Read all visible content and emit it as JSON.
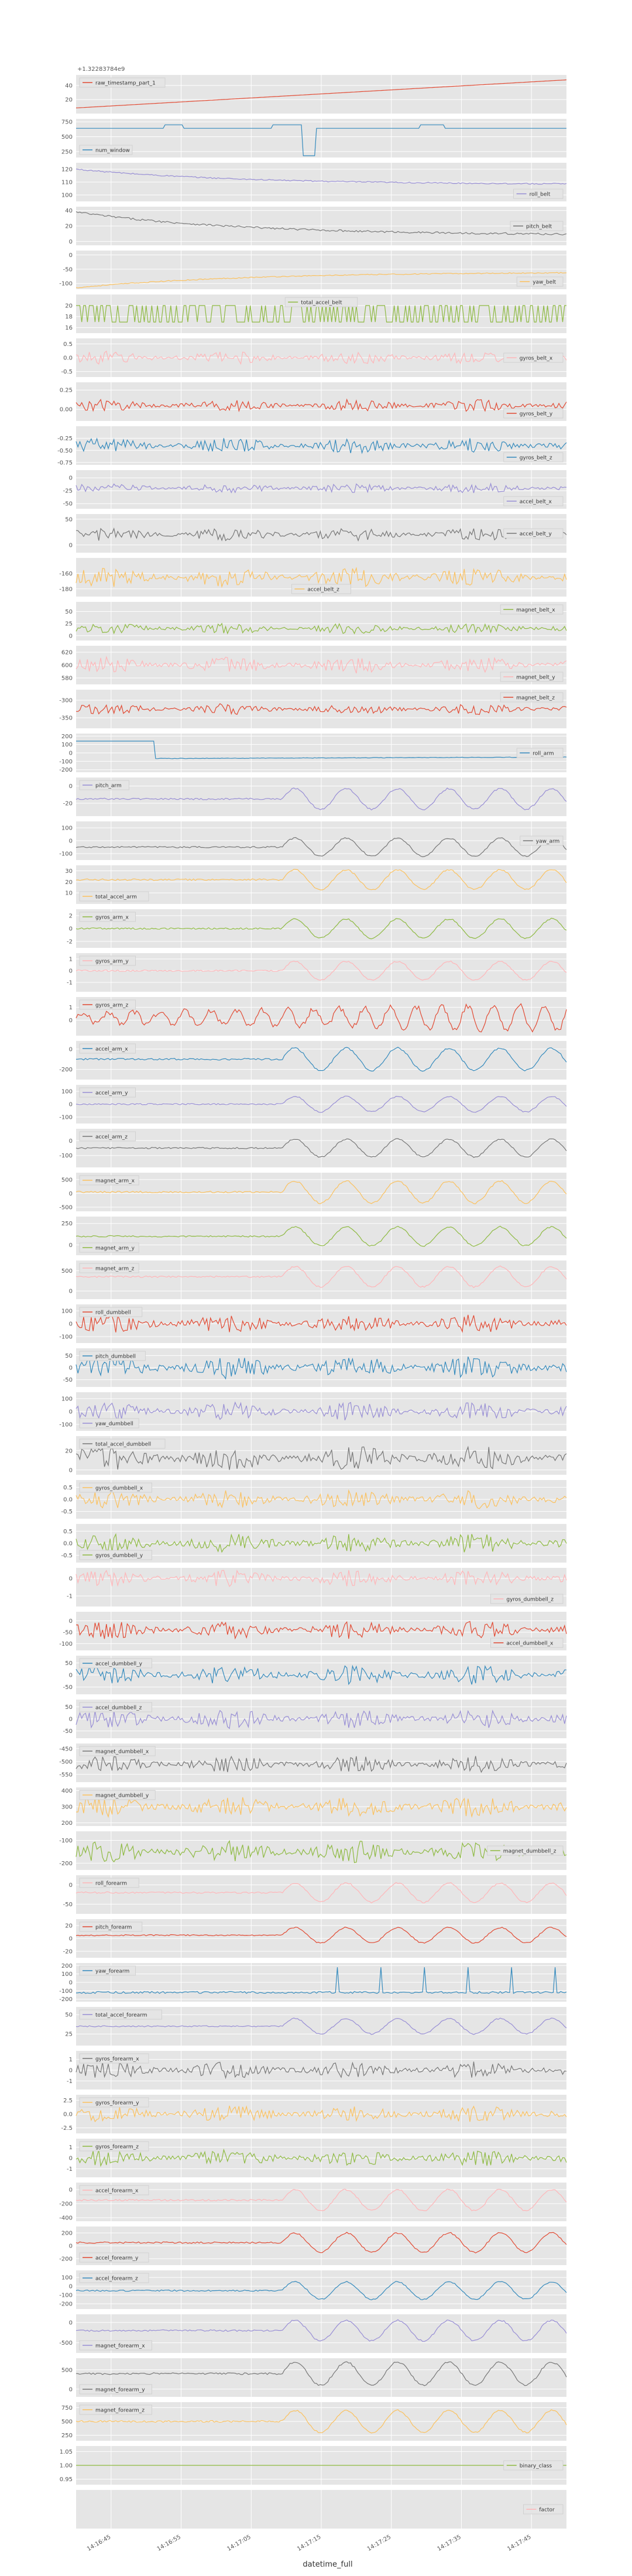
{
  "chart_data": {
    "type": "line",
    "style": "ggplot",
    "xlabel": "datetime_full",
    "x_tick_labels": [
      "14:16:45",
      "14:16:55",
      "14:17:05",
      "14:17:15",
      "14:17:25",
      "14:17:35",
      "14:17:45"
    ],
    "offset_label": "+1.32283784e9",
    "series_order": [
      "raw_timestamp_part_1",
      "num_window",
      "roll_belt",
      "pitch_belt",
      "yaw_belt",
      "total_accel_belt",
      "gyros_belt_x",
      "gyros_belt_y",
      "gyros_belt_z",
      "accel_belt_x",
      "accel_belt_y",
      "accel_belt_z",
      "magnet_belt_x",
      "magnet_belt_y",
      "magnet_belt_z",
      "roll_arm",
      "pitch_arm",
      "yaw_arm",
      "total_accel_arm",
      "gyros_arm_x",
      "gyros_arm_y",
      "gyros_arm_z",
      "accel_arm_x",
      "accel_arm_y",
      "accel_arm_z",
      "magnet_arm_x",
      "magnet_arm_y",
      "magnet_arm_z",
      "roll_dumbbell",
      "pitch_dumbbell",
      "yaw_dumbbell",
      "total_accel_dumbbell",
      "gyros_dumbbell_x",
      "gyros_dumbbell_y",
      "gyros_dumbbell_z",
      "accel_dumbbell_x",
      "accel_dumbbell_y",
      "accel_dumbbell_z",
      "magnet_dumbbell_x",
      "magnet_dumbbell_y",
      "magnet_dumbbell_z",
      "roll_forearm",
      "pitch_forearm",
      "yaw_forearm",
      "total_accel_forearm",
      "gyros_forearm_x",
      "gyros_forearm_y",
      "gyros_forearm_z",
      "accel_forearm_x",
      "accel_forearm_y",
      "accel_forearm_z",
      "magnet_forearm_x",
      "magnet_forearm_y",
      "magnet_forearm_z",
      "binary_class",
      "factor"
    ],
    "panels": {
      "raw_timestamp_part_1": {
        "color": "#E24A33",
        "legend": "upper-left",
        "yticks": [
          "40",
          "20"
        ],
        "ylim": [
          0,
          55
        ],
        "kind": "ramp",
        "base": 8,
        "amp": 40
      },
      "num_window": {
        "color": "#348ABD",
        "legend": "lower-left",
        "yticks": [
          "750",
          "500",
          "250"
        ],
        "ylim": [
          150,
          800
        ],
        "kind": "steps",
        "base": 640,
        "amp": 0
      },
      "roll_belt": {
        "color": "#988ED5",
        "legend": "lower-right",
        "yticks": [
          "120",
          "110",
          "100"
        ],
        "ylim": [
          95,
          125
        ],
        "kind": "decay",
        "base": 108,
        "amp": 12
      },
      "pitch_belt": {
        "color": "#777777",
        "legend": "right",
        "yticks": [
          "40",
          "20",
          "0"
        ],
        "ylim": [
          -5,
          45
        ],
        "kind": "decay",
        "base": 8,
        "amp": 30
      },
      "yaw_belt": {
        "color": "#FBC15E",
        "legend": "lower-right",
        "yticks": [
          "0",
          "-50",
          "-100"
        ],
        "ylim": [
          -120,
          15
        ],
        "kind": "rise",
        "base": -60,
        "amp": 55
      },
      "total_accel_belt": {
        "color": "#8EBA42",
        "legend": "top-center",
        "yticks": [
          "20",
          "18",
          "16"
        ],
        "ylim": [
          15,
          22
        ],
        "kind": "binary",
        "base": 18,
        "amp": 2
      },
      "gyros_belt_x": {
        "color": "#FFB5B8",
        "legend": "right",
        "yticks": [
          "0.5",
          "0.0",
          "-0.5"
        ],
        "ylim": [
          -0.7,
          0.7
        ],
        "kind": "noise",
        "base": 0,
        "amp": 0.15
      },
      "gyros_belt_y": {
        "color": "#E24A33",
        "legend": "lower-right",
        "yticks": [
          "0.25",
          "0.00"
        ],
        "ylim": [
          -0.15,
          0.35
        ],
        "kind": "noise",
        "base": 0.05,
        "amp": 0.05
      },
      "gyros_belt_z": {
        "color": "#348ABD",
        "legend": "lower-right",
        "yticks": [
          "-0.25",
          "-0.50",
          "-0.75"
        ],
        "ylim": [
          -0.8,
          0
        ],
        "kind": "noise",
        "base": -0.4,
        "amp": 0.1
      },
      "accel_belt_x": {
        "color": "#988ED5",
        "legend": "lower-right",
        "yticks": [
          "0",
          "-25",
          "-50"
        ],
        "ylim": [
          -60,
          15
        ],
        "kind": "noise",
        "base": -20,
        "amp": 6
      },
      "accel_belt_y": {
        "color": "#777777",
        "legend": "right",
        "yticks": [
          "50",
          "0"
        ],
        "ylim": [
          -15,
          60
        ],
        "kind": "noise",
        "base": 20,
        "amp": 8
      },
      "accel_belt_z": {
        "color": "#FBC15E",
        "legend": "lower-center",
        "yticks": [
          "-160",
          "-180"
        ],
        "ylim": [
          -190,
          -140
        ],
        "kind": "noise",
        "base": -165,
        "amp": 8
      },
      "magnet_belt_x": {
        "color": "#8EBA42",
        "legend": "upper-right",
        "yticks": [
          "50",
          "25",
          "0"
        ],
        "ylim": [
          -10,
          70
        ],
        "kind": "noise",
        "base": 15,
        "amp": 7
      },
      "magnet_belt_y": {
        "color": "#FFB5B8",
        "legend": "lower-right",
        "yticks": [
          "620",
          "600",
          "580"
        ],
        "ylim": [
          570,
          630
        ],
        "kind": "noise",
        "base": 600,
        "amp": 8
      },
      "magnet_belt_z": {
        "color": "#E24A33",
        "legend": "upper-right",
        "yticks": [
          "-300",
          "-350"
        ],
        "ylim": [
          -380,
          -270
        ],
        "kind": "noise",
        "base": -325,
        "amp": 10
      },
      "roll_arm": {
        "color": "#348ABD",
        "legend": "right",
        "yticks": [
          "200",
          "100",
          "0",
          "-100",
          "-200"
        ],
        "ylim": [
          -230,
          230
        ],
        "kind": "step",
        "base": -10,
        "amp": 100
      },
      "pitch_arm": {
        "color": "#988ED5",
        "legend": "upper-left",
        "yticks": [
          "0",
          "-20"
        ],
        "ylim": [
          -35,
          10
        ],
        "kind": "sine",
        "base": -15,
        "amp": 12
      },
      "yaw_arm": {
        "color": "#777777",
        "legend": "right",
        "yticks": [
          "100",
          "0",
          "-100"
        ],
        "ylim": [
          -150,
          150
        ],
        "kind": "sine",
        "base": -50,
        "amp": 70
      },
      "total_accel_arm": {
        "color": "#FBC15E",
        "legend": "lower-left",
        "yticks": [
          "30",
          "20",
          "10"
        ],
        "ylim": [
          0,
          35
        ],
        "kind": "sine",
        "base": 22,
        "amp": 9
      },
      "gyros_arm_x": {
        "color": "#8EBA42",
        "legend": "upper-left",
        "yticks": [
          "2",
          "0",
          "-2"
        ],
        "ylim": [
          -3,
          3
        ],
        "kind": "sine",
        "base": 0,
        "amp": 1.5
      },
      "gyros_arm_y": {
        "color": "#FFB5B8",
        "legend": "upper-left",
        "yticks": [
          "1",
          "0",
          "-1"
        ],
        "ylim": [
          -1.8,
          1.5
        ],
        "kind": "sine",
        "base": 0,
        "amp": 0.8
      },
      "gyros_arm_z": {
        "color": "#E24A33",
        "legend": "upper-left",
        "yticks": [
          "1",
          "0"
        ],
        "ylim": [
          -1.2,
          1.8
        ],
        "kind": "osc",
        "base": 0.2,
        "amp": 0.7
      },
      "accel_arm_x": {
        "color": "#348ABD",
        "legend": "upper-left",
        "yticks": [
          "0",
          "-200"
        ],
        "ylim": [
          -300,
          80
        ],
        "kind": "sine",
        "base": -100,
        "amp": 110
      },
      "accel_arm_y": {
        "color": "#988ED5",
        "legend": "upper-left",
        "yticks": [
          "100",
          "0",
          "-100"
        ],
        "ylim": [
          -150,
          150
        ],
        "kind": "sine",
        "base": 0,
        "amp": 60
      },
      "accel_arm_z": {
        "color": "#777777",
        "legend": "upper-left",
        "yticks": [
          "0",
          "-100"
        ],
        "ylim": [
          -180,
          80
        ],
        "kind": "sine",
        "base": -50,
        "amp": 60
      },
      "magnet_arm_x": {
        "color": "#FBC15E",
        "legend": "upper-left",
        "yticks": [
          "500",
          "0",
          "-500"
        ],
        "ylim": [
          -650,
          750
        ],
        "kind": "sine",
        "base": 50,
        "amp": 400
      },
      "magnet_arm_y": {
        "color": "#8EBA42",
        "legend": "lower-left",
        "yticks": [
          "250",
          "0"
        ],
        "ylim": [
          -120,
          330
        ],
        "kind": "sine",
        "base": 100,
        "amp": 110
      },
      "magnet_arm_z": {
        "color": "#FFB5B8",
        "legend": "upper-left",
        "yticks": [
          "500",
          "0"
        ],
        "ylim": [
          -200,
          750
        ],
        "kind": "sine",
        "base": 350,
        "amp": 250
      },
      "roll_dumbbell": {
        "color": "#E24A33",
        "legend": "upper-left",
        "yticks": [
          "100",
          "0",
          "-100"
        ],
        "ylim": [
          -150,
          150
        ],
        "kind": "noise",
        "base": 0,
        "amp": 45
      },
      "pitch_dumbbell": {
        "color": "#348ABD",
        "legend": "upper-left",
        "yticks": [
          "50",
          "0",
          "-50"
        ],
        "ylim": [
          -80,
          80
        ],
        "kind": "noise",
        "base": 0,
        "amp": 30
      },
      "yaw_dumbbell": {
        "color": "#988ED5",
        "legend": "lower-left",
        "yticks": [
          "100",
          "0",
          "-100"
        ],
        "ylim": [
          -150,
          150
        ],
        "kind": "noise",
        "base": 0,
        "amp": 45
      },
      "total_accel_dumbbell": {
        "color": "#777777",
        "legend": "upper-left",
        "yticks": [
          "20",
          "0"
        ],
        "ylim": [
          -5,
          35
        ],
        "kind": "noise",
        "base": 12,
        "amp": 8
      },
      "gyros_dumbbell_x": {
        "color": "#FBC15E",
        "legend": "upper-left",
        "yticks": [
          "0.5",
          "0.0",
          "-0.5"
        ],
        "ylim": [
          -0.8,
          0.8
        ],
        "kind": "noise",
        "base": 0,
        "amp": 0.25
      },
      "gyros_dumbbell_y": {
        "color": "#8EBA42",
        "legend": "lower-left",
        "yticks": [
          "0.5",
          "0.0",
          "-0.5"
        ],
        "ylim": [
          -0.8,
          0.8
        ],
        "kind": "noise",
        "base": 0,
        "amp": 0.25
      },
      "gyros_dumbbell_z": {
        "color": "#FFB5B8",
        "legend": "lower-right",
        "yticks": [
          "0",
          "-1"
        ],
        "ylim": [
          -1.6,
          0.6
        ],
        "kind": "noise",
        "base": 0,
        "amp": 0.3
      },
      "accel_dumbbell_x": {
        "color": "#E24A33",
        "legend": "lower-right",
        "yticks": [
          "0",
          "-50",
          "-100"
        ],
        "ylim": [
          -130,
          40
        ],
        "kind": "noise",
        "base": -40,
        "amp": 25
      },
      "accel_dumbbell_y": {
        "color": "#348ABD",
        "legend": "upper-left",
        "yticks": [
          "50",
          "0",
          "-50"
        ],
        "ylim": [
          -80,
          80
        ],
        "kind": "noise",
        "base": 0,
        "amp": 25
      },
      "accel_dumbbell_z": {
        "color": "#988ED5",
        "legend": "upper-left",
        "yticks": [
          "50",
          "0",
          "-50"
        ],
        "ylim": [
          -80,
          80
        ],
        "kind": "noise",
        "base": 0,
        "amp": 25
      },
      "magnet_dumbbell_x": {
        "color": "#777777",
        "legend": "upper-left",
        "yticks": [
          "-450",
          "-500",
          "-550"
        ],
        "ylim": [
          -580,
          -430
        ],
        "kind": "noise",
        "base": -510,
        "amp": 20
      },
      "magnet_dumbbell_y": {
        "color": "#FBC15E",
        "legend": "upper-left",
        "yticks": [
          "400",
          "300",
          "200"
        ],
        "ylim": [
          180,
          420
        ],
        "kind": "noise",
        "base": 300,
        "amp": 40
      },
      "magnet_dumbbell_z": {
        "color": "#8EBA42",
        "legend": "right",
        "yticks": [
          "-100",
          "-200"
        ],
        "ylim": [
          -230,
          -60
        ],
        "kind": "noise",
        "base": -150,
        "amp": 30
      },
      "roll_forearm": {
        "color": "#FFB5B8",
        "legend": "upper-left",
        "yticks": [
          "0",
          "-50"
        ],
        "ylim": [
          -75,
          25
        ],
        "kind": "sine",
        "base": -20,
        "amp": 25
      },
      "pitch_forearm": {
        "color": "#E24A33",
        "legend": "upper-left",
        "yticks": [
          "20",
          "0",
          "-20"
        ],
        "ylim": [
          -30,
          30
        ],
        "kind": "sine",
        "base": 5,
        "amp": 12
      },
      "yaw_forearm": {
        "color": "#348ABD",
        "legend": "upper-left",
        "yticks": [
          "200",
          "100",
          "0",
          "-100",
          "-200"
        ],
        "ylim": [
          -230,
          230
        ],
        "kind": "spikes",
        "base": -120,
        "amp": 40
      },
      "total_accel_forearm": {
        "color": "#988ED5",
        "legend": "upper-left",
        "yticks": [
          "50",
          "25"
        ],
        "ylim": [
          10,
          60
        ],
        "kind": "sine",
        "base": 35,
        "amp": 10
      },
      "gyros_forearm_x": {
        "color": "#777777",
        "legend": "upper-left",
        "yticks": [
          "1",
          "0",
          "-1"
        ],
        "ylim": [
          -1.8,
          1.8
        ],
        "kind": "noise",
        "base": 0,
        "amp": 0.5
      },
      "gyros_forearm_y": {
        "color": "#FBC15E",
        "legend": "upper-left",
        "yticks": [
          "2.5",
          "0.0",
          "-2.5"
        ],
        "ylim": [
          -3.5,
          3.5
        ],
        "kind": "noise",
        "base": 0,
        "amp": 1
      },
      "gyros_forearm_z": {
        "color": "#8EBA42",
        "legend": "upper-left",
        "yticks": [
          "1",
          "0",
          "-1"
        ],
        "ylim": [
          -1.8,
          1.8
        ],
        "kind": "noise",
        "base": 0,
        "amp": 0.5
      },
      "accel_forearm_x": {
        "color": "#FFB5B8",
        "legend": "upper-left",
        "yticks": [
          "0",
          "-200",
          "-400"
        ],
        "ylim": [
          -450,
          100
        ],
        "kind": "sine",
        "base": -150,
        "amp": 150
      },
      "accel_forearm_y": {
        "color": "#E24A33",
        "legend": "lower-left",
        "yticks": [
          "200",
          "0",
          "-200"
        ],
        "ylim": [
          -300,
          300
        ],
        "kind": "sine",
        "base": 50,
        "amp": 150
      },
      "accel_forearm_z": {
        "color": "#348ABD",
        "legend": "upper-left",
        "yticks": [
          "100",
          "0",
          "-100",
          "-200"
        ],
        "ylim": [
          -260,
          180
        ],
        "kind": "sine",
        "base": -50,
        "amp": 100
      },
      "magnet_forearm_x": {
        "color": "#988ED5",
        "legend": "lower-left",
        "yticks": [
          "0",
          "-500"
        ],
        "ylim": [
          -750,
          200
        ],
        "kind": "sine",
        "base": -200,
        "amp": 250
      },
      "magnet_forearm_y": {
        "color": "#777777",
        "legend": "lower-left",
        "yticks": [
          "500",
          "0"
        ],
        "ylim": [
          -200,
          800
        ],
        "kind": "sine",
        "base": 400,
        "amp": 300
      },
      "magnet_forearm_z": {
        "color": "#FBC15E",
        "legend": "upper-left",
        "yticks": [
          "750",
          "500",
          "250"
        ],
        "ylim": [
          150,
          850
        ],
        "kind": "sine",
        "base": 500,
        "amp": 200
      },
      "binary_class": {
        "color": "#8EBA42",
        "legend": "right",
        "yticks": [
          "1.05",
          "1.00",
          "0.95"
        ],
        "ylim": [
          0.93,
          1.07
        ],
        "kind": "flat",
        "base": 1,
        "amp": 0
      },
      "factor": {
        "color": "#FFB5B8",
        "legend": "right",
        "yticks": [],
        "ylim": [
          0,
          1
        ],
        "kind": "none",
        "base": 0,
        "amp": 0
      }
    }
  }
}
